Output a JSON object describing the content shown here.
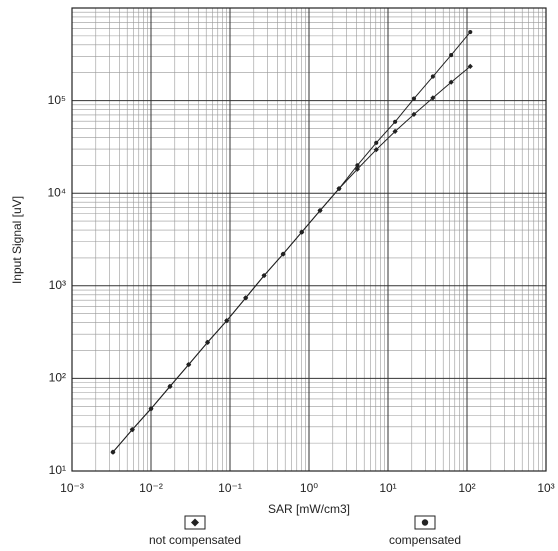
{
  "chart_data": {
    "type": "line",
    "xlabel": "SAR [mW/cm3]",
    "ylabel": "Input Signal [uV]",
    "log_x": true,
    "log_y": true,
    "grid": true,
    "x": [
      0.0033,
      0.0058,
      0.01,
      0.0174,
      0.03,
      0.052,
      0.091,
      0.158,
      0.27,
      0.47,
      0.81,
      1.38,
      2.4,
      4.1,
      7.1,
      12.3,
      21.3,
      37,
      63,
      110
    ],
    "series": [
      {
        "name": "not compensated",
        "color": "#222222",
        "marker": "diamond",
        "values": [
          16,
          28,
          47,
          82,
          141,
          245,
          420,
          740,
          1290,
          2200,
          3800,
          6500,
          11200,
          18200,
          29500,
          46500,
          71000,
          107000,
          158000,
          234000
        ]
      },
      {
        "name": "compensated",
        "color": "#222222",
        "marker": "circle",
        "values": [
          16,
          28,
          47,
          82,
          141,
          245,
          420,
          740,
          1290,
          2200,
          3800,
          6500,
          11200,
          20000,
          35000,
          59000,
          105000,
          182000,
          310000,
          550000
        ]
      }
    ],
    "xlim": [
      0.001,
      1000
    ],
    "ylim": [
      10,
      1000000
    ],
    "xticks": [
      {
        "value": 0.001,
        "label": "10⁻³"
      },
      {
        "value": 0.01,
        "label": "10⁻²"
      },
      {
        "value": 0.1,
        "label": "10⁻¹"
      },
      {
        "value": 1,
        "label": "10⁰"
      },
      {
        "value": 10,
        "label": "10¹"
      },
      {
        "value": 100,
        "label": "10²"
      },
      {
        "value": 1000,
        "label": "10³"
      }
    ],
    "yticks": [
      {
        "value": 10,
        "label": "10¹"
      },
      {
        "value": 100,
        "label": "10²"
      },
      {
        "value": 1000,
        "label": "10³"
      },
      {
        "value": 10000,
        "label": "10⁴"
      },
      {
        "value": 100000,
        "label": "10⁵"
      }
    ]
  }
}
